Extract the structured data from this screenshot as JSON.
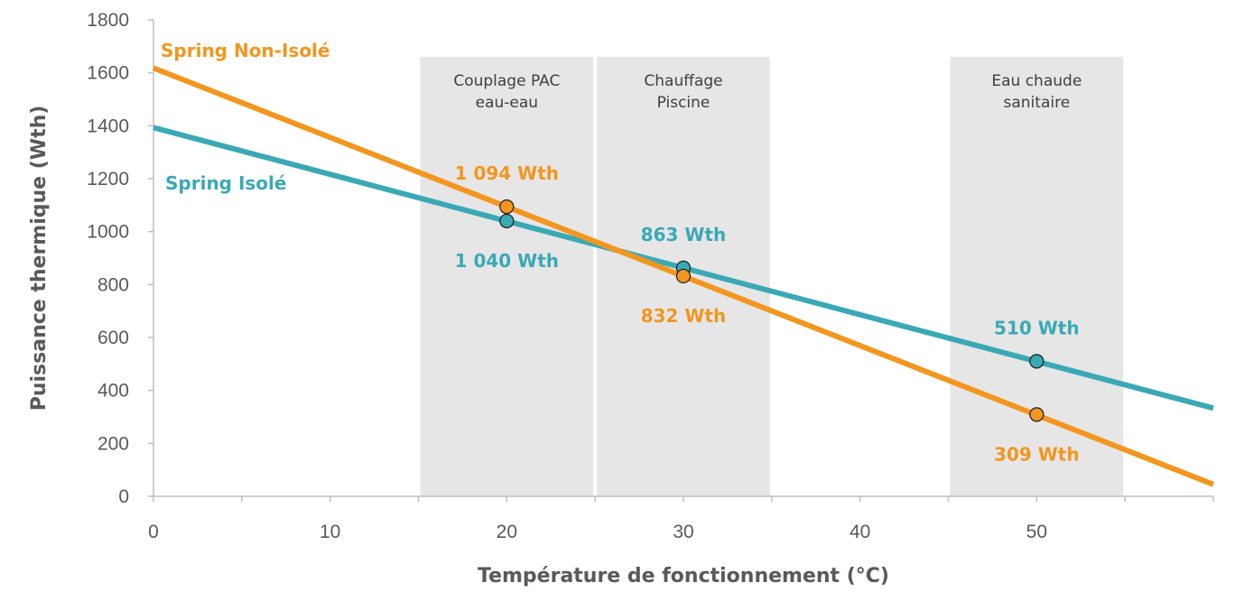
{
  "chart_data": {
    "type": "line",
    "xlabel": "Température de fonctionnement (°C)",
    "ylabel": "Puissance thermique (Wth)",
    "xlim": [
      0,
      60
    ],
    "ylim": [
      0,
      1800
    ],
    "x_ticks": [
      0,
      10,
      20,
      30,
      40,
      50
    ],
    "y_ticks": [
      0,
      200,
      400,
      600,
      800,
      1000,
      1200,
      1400,
      1600,
      1800
    ],
    "bands": [
      {
        "x0": 15,
        "x1": 25,
        "label_lines": [
          "Couplage PAC",
          "eau-eau"
        ]
      },
      {
        "x0": 25,
        "x1": 35,
        "label_lines": [
          "Chauffage",
          "Piscine"
        ]
      },
      {
        "x0": 45,
        "x1": 55,
        "label_lines": [
          "Eau chaude",
          "sanitaire"
        ]
      }
    ],
    "series": [
      {
        "name": "Spring Isolé",
        "color": "#3aa9b5",
        "line": {
          "x": [
            0,
            60
          ],
          "y": [
            1393,
            333
          ]
        },
        "points": [
          {
            "x": 20,
            "y": 1040,
            "label": "1 040 Wth",
            "pos": "below"
          },
          {
            "x": 30,
            "y": 863,
            "label": "863 Wth",
            "pos": "above"
          },
          {
            "x": 50,
            "y": 510,
            "label": "510 Wth",
            "pos": "above"
          }
        ]
      },
      {
        "name": "Spring Non-Isolé",
        "color": "#f2961f",
        "line": {
          "x": [
            0,
            60
          ],
          "y": [
            1618,
            45
          ]
        },
        "points": [
          {
            "x": 20,
            "y": 1094,
            "label": "1 094 Wth",
            "pos": "above"
          },
          {
            "x": 30,
            "y": 832,
            "label": "832 Wth",
            "pos": "below"
          },
          {
            "x": 50,
            "y": 309,
            "label": "309 Wth",
            "pos": "below"
          }
        ]
      }
    ]
  }
}
